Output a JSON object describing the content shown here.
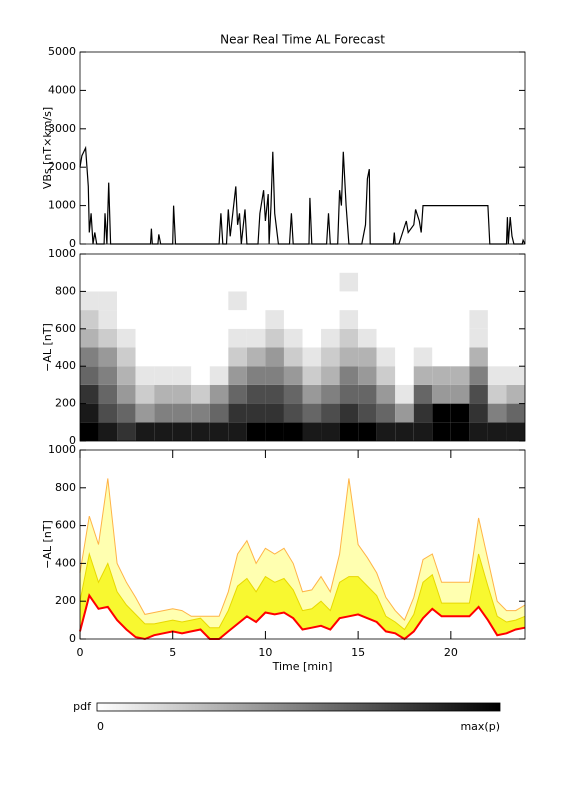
{
  "chart_data": [
    {
      "type": "line",
      "title": "Near Real Time AL Forecast",
      "y_label": "VBs [nT×km/s]",
      "color": "#000000",
      "xlim": [
        0,
        24
      ],
      "ylim": [
        0,
        5000
      ],
      "yticks": [
        0,
        1000,
        2000,
        3000,
        4000,
        5000
      ],
      "x": [
        0,
        0.1,
        0.3,
        0.45,
        0.5,
        0.6,
        0.7,
        0.8,
        0.9,
        1.3,
        1.35,
        1.45,
        1.55,
        1.65,
        2.0,
        3.8,
        3.85,
        3.9,
        4.2,
        4.25,
        4.35,
        5.0,
        5.05,
        5.15,
        7.5,
        7.6,
        7.7,
        7.9,
        8.0,
        8.1,
        8.4,
        8.5,
        8.6,
        8.7,
        8.9,
        9.0,
        9.6,
        9.7,
        9.9,
        10.0,
        10.15,
        10.2,
        10.3,
        10.4,
        10.5,
        10.7,
        11.3,
        11.4,
        11.5,
        12.35,
        12.4,
        12.5,
        13.3,
        13.4,
        13.5,
        13.9,
        14.0,
        14.1,
        14.2,
        14.35,
        14.5,
        15.2,
        15.4,
        15.5,
        15.6,
        15.65,
        16.9,
        16.95,
        17.0,
        17.2,
        17.4,
        17.6,
        17.7,
        18.0,
        18.1,
        18.3,
        18.4,
        18.5,
        18.6,
        22.0,
        22.1,
        23.0,
        23.05,
        23.1,
        23.2,
        23.3,
        23.4,
        23.85,
        23.9,
        24
      ],
      "values": [
        2000,
        2300,
        2500,
        1500,
        300,
        800,
        0,
        300,
        0,
        0,
        800,
        0,
        1600,
        0,
        0,
        0,
        400,
        0,
        0,
        250,
        0,
        0,
        1000,
        0,
        0,
        800,
        0,
        0,
        900,
        200,
        1500,
        500,
        800,
        0,
        900,
        0,
        0,
        800,
        1400,
        600,
        1300,
        0,
        1000,
        2400,
        800,
        0,
        0,
        800,
        0,
        0,
        1200,
        0,
        0,
        800,
        0,
        0,
        1400,
        1000,
        2400,
        1000,
        0,
        0,
        500,
        1700,
        1950,
        0,
        0,
        300,
        0,
        0,
        300,
        600,
        300,
        500,
        900,
        600,
        300,
        1000,
        1000,
        1000,
        0,
        0,
        700,
        0,
        700,
        200,
        0,
        0,
        100,
        0
      ]
    },
    {
      "type": "heatmap",
      "y_label": "−AL [nT]",
      "xlim": [
        0,
        24
      ],
      "ylim": [
        0,
        1000
      ],
      "yticks": [
        0,
        200,
        400,
        600,
        800,
        1000
      ],
      "x_bins": [
        0,
        1,
        2,
        3,
        4,
        5,
        6,
        7,
        8,
        9,
        10,
        11,
        12,
        13,
        14,
        15,
        16,
        17,
        18,
        19,
        20,
        21,
        22,
        23,
        24
      ],
      "y_bins": [
        0,
        100,
        200,
        300,
        400,
        500,
        600,
        700,
        800,
        900,
        1000
      ],
      "z": [
        [
          10,
          9,
          8,
          6,
          5,
          3,
          2,
          1,
          0,
          0
        ],
        [
          9,
          7,
          6,
          5,
          4,
          2,
          1,
          1,
          0,
          0
        ],
        [
          8,
          6,
          4,
          3,
          2,
          1,
          0,
          0,
          0,
          0
        ],
        [
          9,
          4,
          2,
          1,
          0,
          0,
          0,
          0,
          0,
          0
        ],
        [
          9,
          5,
          3,
          1,
          0,
          0,
          0,
          0,
          0,
          0
        ],
        [
          9,
          5,
          3,
          1,
          0,
          0,
          0,
          0,
          0,
          0
        ],
        [
          9,
          5,
          2,
          0,
          0,
          0,
          0,
          0,
          0,
          0
        ],
        [
          9,
          6,
          4,
          1,
          0,
          0,
          0,
          0,
          0,
          0
        ],
        [
          9,
          8,
          6,
          4,
          2,
          1,
          0,
          1,
          0,
          0
        ],
        [
          10,
          8,
          7,
          5,
          3,
          1,
          0,
          0,
          0,
          0
        ],
        [
          10,
          8,
          7,
          5,
          4,
          2,
          1,
          0,
          0,
          0
        ],
        [
          10,
          7,
          6,
          4,
          2,
          1,
          0,
          0,
          0,
          0
        ],
        [
          9,
          6,
          4,
          2,
          1,
          0,
          0,
          0,
          0,
          0
        ],
        [
          9,
          7,
          5,
          3,
          2,
          1,
          0,
          0,
          0,
          0
        ],
        [
          10,
          8,
          6,
          5,
          3,
          2,
          1,
          0,
          1,
          0
        ],
        [
          10,
          7,
          6,
          4,
          3,
          1,
          0,
          0,
          0,
          0
        ],
        [
          9,
          6,
          4,
          2,
          1,
          0,
          0,
          0,
          0,
          0
        ],
        [
          9,
          4,
          1,
          0,
          0,
          0,
          0,
          0,
          0,
          0
        ],
        [
          9,
          8,
          6,
          3,
          1,
          0,
          0,
          0,
          0,
          0
        ],
        [
          10,
          10,
          4,
          3,
          0,
          0,
          0,
          0,
          0,
          0
        ],
        [
          10,
          10,
          4,
          3,
          0,
          0,
          0,
          0,
          0,
          0
        ],
        [
          9,
          8,
          7,
          5,
          3,
          1,
          1,
          0,
          0,
          0
        ],
        [
          9,
          5,
          2,
          1,
          0,
          0,
          0,
          0,
          0,
          0
        ],
        [
          9,
          6,
          3,
          1,
          0,
          0,
          0,
          0,
          0,
          0
        ]
      ],
      "colorbar": {
        "label": "pdf",
        "zlim": [
          0,
          10
        ],
        "ticks": [
          0,
          {
            "value": 10,
            "label": "max(p)"
          }
        ]
      }
    },
    {
      "type": "area",
      "y_label": "−AL [nT]",
      "x_label": "Time [min]",
      "xlim": [
        0,
        24
      ],
      "ylim": [
        0,
        1000
      ],
      "yticks": [
        0,
        200,
        400,
        600,
        800,
        1000
      ],
      "xticks": [
        0,
        5,
        10,
        15,
        20
      ],
      "x": [
        0,
        0.5,
        1,
        1.5,
        2,
        2.5,
        3,
        3.5,
        4,
        4.5,
        5,
        5.5,
        6,
        6.5,
        7,
        7.5,
        8,
        8.5,
        9,
        9.5,
        10,
        10.5,
        11,
        11.5,
        12,
        12.5,
        13,
        13.5,
        14,
        14.5,
        15,
        15.5,
        16,
        16.5,
        17,
        17.5,
        18,
        18.5,
        19,
        19.5,
        20,
        20.5,
        21,
        21.5,
        22,
        22.5,
        23,
        23.5,
        24
      ],
      "series": [
        {
          "color": "#ffb347",
          "fill": "#ffffb0",
          "values": [
            350,
            650,
            500,
            850,
            400,
            300,
            220,
            130,
            140,
            150,
            160,
            150,
            120,
            120,
            120,
            120,
            250,
            450,
            520,
            400,
            480,
            450,
            480,
            400,
            250,
            260,
            330,
            250,
            450,
            850,
            500,
            430,
            350,
            220,
            150,
            100,
            220,
            420,
            450,
            300,
            300,
            300,
            300,
            640,
            420,
            200,
            150,
            150,
            180
          ]
        },
        {
          "color": "#e8d800",
          "fill": "#f8f830",
          "values": [
            200,
            450,
            300,
            400,
            250,
            180,
            130,
            80,
            80,
            90,
            100,
            90,
            100,
            110,
            60,
            60,
            150,
            280,
            320,
            250,
            330,
            300,
            320,
            260,
            150,
            160,
            200,
            150,
            300,
            330,
            330,
            280,
            230,
            120,
            90,
            50,
            130,
            300,
            340,
            190,
            190,
            190,
            190,
            450,
            280,
            120,
            90,
            100,
            120
          ]
        },
        {
          "color": "#ff0000",
          "fill": "#ffffff",
          "values": [
            40,
            230,
            160,
            170,
            100,
            50,
            10,
            0,
            20,
            30,
            40,
            30,
            40,
            50,
            0,
            0,
            40,
            80,
            120,
            90,
            140,
            130,
            140,
            110,
            50,
            60,
            70,
            50,
            110,
            120,
            130,
            110,
            90,
            40,
            30,
            0,
            40,
            110,
            160,
            120,
            120,
            120,
            120,
            170,
            100,
            20,
            30,
            50,
            60
          ]
        }
      ]
    }
  ]
}
